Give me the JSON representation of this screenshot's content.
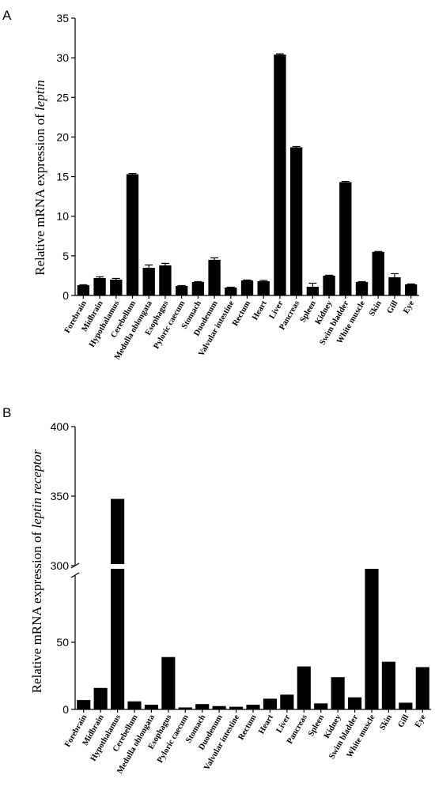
{
  "chart_data": [
    {
      "panel": "A",
      "type": "bar",
      "ylabel_prefix": "Relative mRNA expression of ",
      "ylabel_gene": "leptin",
      "ylim": [
        0,
        35
      ],
      "yticks": [
        "0",
        "5",
        "10",
        "15",
        "20",
        "25",
        "30",
        "35"
      ],
      "categories": [
        "Forebrain",
        "Midbrain",
        "Hypothalamus",
        "Cerebellum",
        "Medulla oblongata",
        "Esophagus",
        "Pyloric caecum",
        "Stomach",
        "Duodenum",
        "Valvular intestine",
        "Rectum",
        "Heart",
        "Liver",
        "Pancreas",
        "Spleen",
        "Kidney",
        "Swim bladder",
        "White muscle",
        "Skin",
        "Gill",
        "Eye"
      ],
      "values": [
        1.3,
        2.2,
        2.0,
        15.3,
        3.5,
        3.8,
        1.2,
        1.7,
        4.5,
        1.0,
        1.9,
        1.8,
        30.4,
        18.7,
        1.1,
        2.5,
        14.3,
        1.7,
        5.5,
        2.3,
        1.4
      ],
      "errors": [
        0.05,
        0.15,
        0.15,
        0.1,
        0.35,
        0.25,
        0.05,
        0.05,
        0.25,
        0.05,
        0.05,
        0.1,
        0.1,
        0.1,
        0.45,
        0.05,
        0.1,
        0.05,
        0.05,
        0.45,
        0.05
      ]
    },
    {
      "panel": "B",
      "type": "bar",
      "ylabel_prefix": "Relative mRNA expression of ",
      "ylabel_gene": "leptin receptor",
      "ylim": [
        0,
        400
      ],
      "axis_break": [
        100,
        300
      ],
      "yticks": [
        "0",
        "50",
        "300",
        "350",
        "400"
      ],
      "categories": [
        "Forebrain",
        "Midbrain",
        "Hypothalamus",
        "Cerebellum",
        "Medulla oblongata",
        "Esophagus",
        "Pyloric caecum",
        "Stomach",
        "Duodenum",
        "Valvular intestine",
        "Rectum",
        "Heart",
        "Liver",
        "Pancreas",
        "Spleen",
        "Kidney",
        "Swim bladder",
        "White muscle",
        "Skin",
        "Gill",
        "Eye"
      ],
      "values": [
        7,
        16,
        348,
        6,
        3.5,
        39,
        1.5,
        4,
        2.5,
        2,
        3.5,
        8,
        11,
        32,
        4.5,
        24,
        9,
        296,
        35.5,
        5,
        31.5
      ]
    }
  ]
}
